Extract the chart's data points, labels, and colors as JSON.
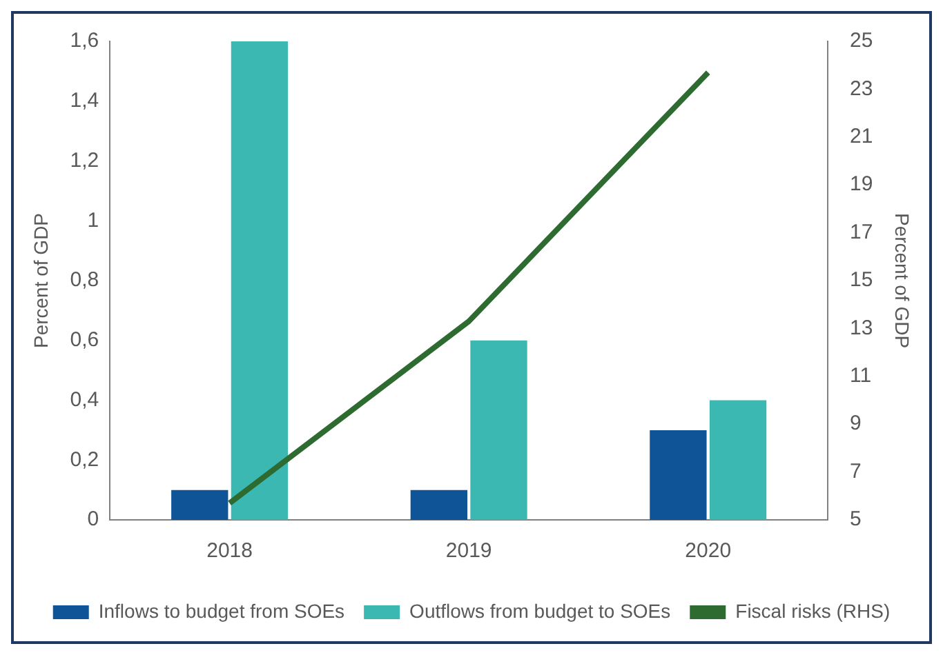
{
  "chart_data": {
    "type": "bar",
    "categories": [
      "2018",
      "2019",
      "2020"
    ],
    "ylabel": "Percent of GDP",
    "y2label": "Percent of GDP",
    "series": [
      {
        "name": "Inflows to budget from SOEs",
        "color": "#0f5496",
        "values": [
          0.1,
          0.1,
          0.3
        ]
      },
      {
        "name": "Outflows from budget to SOEs",
        "color": "#3cb8b3",
        "values": [
          1.6,
          0.6,
          0.4
        ]
      },
      {
        "name": "Fiscal risks (RHS)",
        "type": "line",
        "axis": "y2",
        "color": "#2e6b30",
        "values": [
          5.7,
          13.3,
          23.7
        ]
      }
    ],
    "ylim": [
      0,
      1.6
    ],
    "yticks": [
      0,
      {
        "value": 0.2,
        "label": "0,2"
      },
      {
        "value": 0.4,
        "label": "0,4"
      },
      {
        "value": 0.6,
        "label": "0,6"
      },
      {
        "value": 0.8,
        "label": "0,8"
      },
      1,
      {
        "value": 1.2,
        "label": "1,2"
      },
      {
        "value": 1.4,
        "label": "1,4"
      },
      {
        "value": 1.6,
        "label": "1,6"
      }
    ],
    "y2lim": [
      5,
      25
    ],
    "y2ticks": [
      5,
      7,
      9,
      11,
      13,
      15,
      17,
      19,
      21,
      23,
      25
    ],
    "grid": false,
    "legend": "bottom",
    "marker": "none",
    "line_style": "solid"
  }
}
